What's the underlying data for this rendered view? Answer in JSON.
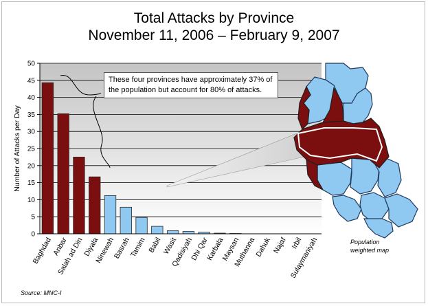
{
  "chart_data": {
    "type": "bar",
    "title": "Total Attacks by Province",
    "subtitle": "November 11, 2006 – February 9, 2007",
    "ylabel": "Number of Attacks per Day",
    "xlabel": "",
    "ylim": [
      0,
      50
    ],
    "yticks": [
      0,
      5,
      10,
      15,
      20,
      25,
      30,
      35,
      40,
      45,
      50
    ],
    "grid": true,
    "categories": [
      "Baghdad",
      "Anbar",
      "Salah ad Din",
      "Diyala",
      "Ninewah",
      "Basrah",
      "Tamim",
      "Babil",
      "Wasit",
      "Qadisiyah",
      "Dhi Qar",
      "Karbala",
      "Maysan",
      "Muthanna",
      "Dahuk",
      "Najaf",
      "Irbil",
      "Sulaymaniyah"
    ],
    "values": [
      44.3,
      35.2,
      22.5,
      16.7,
      11.2,
      7.8,
      4.8,
      2.2,
      0.9,
      0.7,
      0.5,
      0.2,
      0.1,
      0.0,
      0.0,
      0.0,
      0.0,
      0.0
    ],
    "highlight_count": 4,
    "colors": {
      "highlight": "#7b0f0f",
      "normal": "#8fc8f0",
      "bar_stroke": "#2a2a2a",
      "grid": "#000000",
      "map_blue": "#8fc8f0",
      "map_red": "#7b0f0f"
    },
    "annotation": "These four provinces have approximately 37% of the population but account for 80% of attacks."
  },
  "map_label": "Population weighted map",
  "source": "Source: MNC-I"
}
